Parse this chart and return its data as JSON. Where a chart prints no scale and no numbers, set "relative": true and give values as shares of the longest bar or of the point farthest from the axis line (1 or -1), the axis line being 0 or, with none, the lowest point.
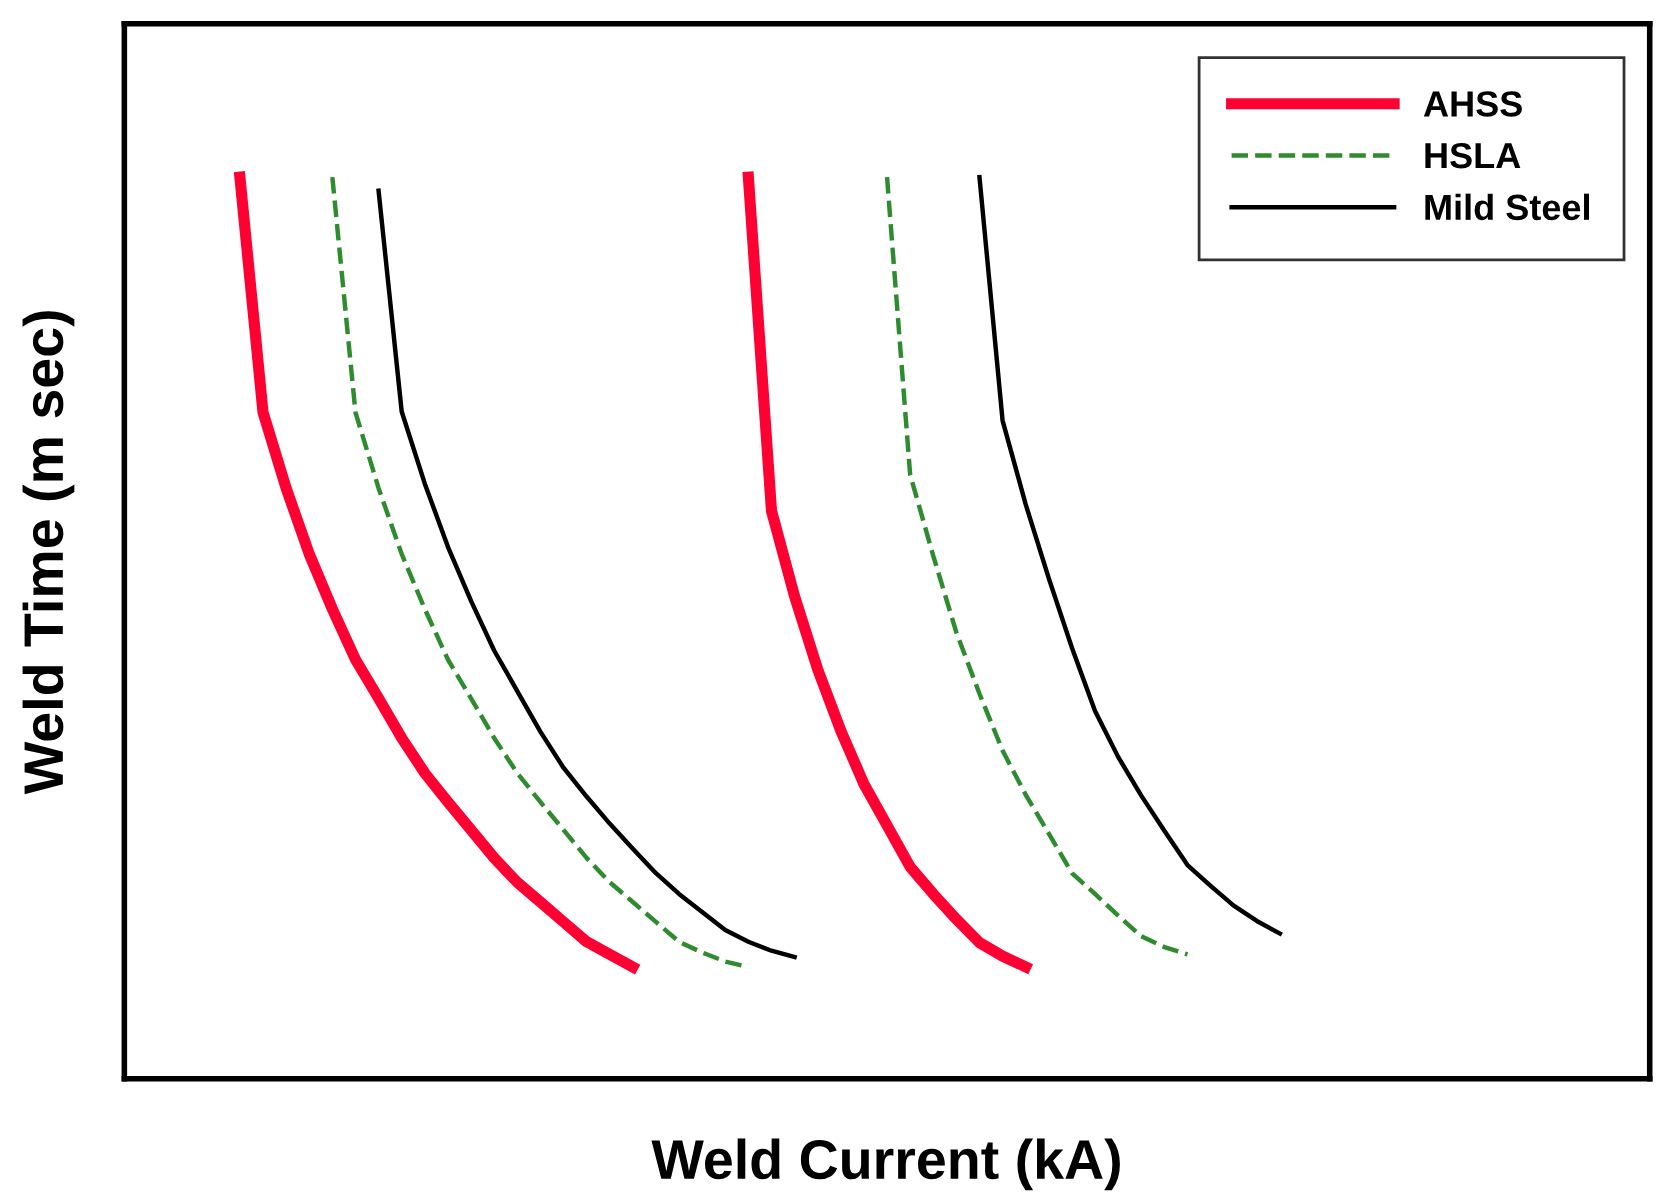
{
  "chart_data": {
    "type": "line",
    "relative": true,
    "xlabel": "Weld Current (kA)",
    "ylabel": "Weld Time (m sec)",
    "legend": "top right",
    "marker": "none",
    "categories": [
      null,
      null,
      null,
      null,
      null,
      null,
      null,
      null,
      null,
      null,
      null,
      null,
      null,
      null,
      null,
      null,
      null,
      null,
      null,
      null,
      null,
      null,
      null,
      null,
      null,
      null,
      null,
      null,
      null,
      null,
      null,
      null,
      null,
      null,
      null,
      null,
      null,
      null,
      null,
      null,
      null,
      null,
      null,
      null,
      null,
      null,
      null,
      null,
      null,
      null,
      null
    ],
    "series": [
      {
        "name": "AHSS",
        "color": "#ff0033",
        "line_style": "solid",
        "values": [
          null,
          null,
          null,
          null,
          null,
          1.0,
          0.739,
          0.655,
          0.582,
          0.521,
          0.465,
          0.422,
          0.378,
          0.339,
          0.307,
          0.276,
          0.245,
          0.218,
          0.196,
          0.174,
          0.152,
          0.138,
          0.124,
          null,
          null,
          null,
          null,
          null,
          null,
          null,
          null,
          null,
          null,
          null,
          null,
          null,
          null,
          null,
          null,
          null,
          null,
          null,
          null,
          null,
          null,
          null,
          null,
          null,
          null,
          null,
          null
        ]
      },
      {
        "name": "HSLA",
        "color": "#2e8b2e",
        "line_style": "dashed",
        "values": [
          null,
          null,
          null,
          null,
          null,
          null,
          null,
          null,
          null,
          1.0,
          0.739,
          0.655,
          0.582,
          0.521,
          0.465,
          0.422,
          0.378,
          0.339,
          0.307,
          0.276,
          0.245,
          0.218,
          0.196,
          0.174,
          0.152,
          0.14,
          0.13,
          0.124,
          null,
          null,
          null,
          null,
          null,
          null,
          null,
          null,
          null,
          null,
          null,
          null,
          null,
          null,
          null,
          null,
          null,
          null,
          null,
          null,
          null,
          null,
          null
        ]
      },
      {
        "name": "Mild Steel",
        "color": "#000000",
        "line_style": "solid",
        "values": [
          null,
          null,
          null,
          null,
          null,
          null,
          null,
          null,
          null,
          null,
          null,
          0.985,
          0.74,
          0.66,
          0.59,
          0.53,
          0.475,
          0.43,
          0.385,
          0.345,
          0.313,
          0.283,
          0.255,
          0.228,
          0.205,
          0.185,
          0.165,
          0.152,
          0.142,
          0.135,
          null,
          null,
          null,
          null,
          null,
          null,
          null,
          null,
          null,
          null,
          null,
          null,
          null,
          null,
          null,
          null,
          null,
          null,
          null,
          null,
          null
        ]
      },
      {
        "color": "#ff0033",
        "line_style": "solid",
        "values": [
          null,
          null,
          null,
          null,
          null,
          null,
          null,
          null,
          null,
          null,
          null,
          null,
          null,
          null,
          null,
          null,
          null,
          null,
          null,
          null,
          null,
          null,
          null,
          null,
          null,
          null,
          null,
          1.0,
          0.63,
          0.535,
          0.454,
          0.386,
          0.327,
          0.281,
          0.235,
          0.205,
          0.177,
          0.151,
          0.136,
          0.124,
          null,
          null,
          null,
          null,
          null,
          null,
          null,
          null,
          null,
          null,
          null
        ]
      },
      {
        "color": "#2e8b2e",
        "line_style": "dashed",
        "values": [
          null,
          null,
          null,
          null,
          null,
          null,
          null,
          null,
          null,
          null,
          null,
          null,
          null,
          null,
          null,
          null,
          null,
          null,
          null,
          null,
          null,
          null,
          null,
          null,
          null,
          null,
          null,
          null,
          null,
          null,
          null,
          null,
          null,
          1.0,
          0.67,
          0.58,
          0.495,
          0.427,
          0.364,
          0.315,
          0.272,
          0.228,
          0.205,
          0.181,
          0.158,
          0.146,
          0.138,
          null,
          null,
          null,
          null
        ]
      },
      {
        "color": "#000000",
        "line_style": "solid",
        "values": [
          null,
          null,
          null,
          null,
          null,
          null,
          null,
          null,
          null,
          null,
          null,
          null,
          null,
          null,
          null,
          null,
          null,
          null,
          null,
          null,
          null,
          null,
          null,
          null,
          null,
          null,
          null,
          null,
          null,
          null,
          null,
          null,
          null,
          null,
          null,
          null,
          null,
          1.0,
          0.73,
          0.637,
          0.555,
          0.478,
          0.408,
          0.357,
          0.314,
          0.275,
          0.237,
          0.214,
          0.192,
          0.175,
          0.161
        ]
      }
    ]
  }
}
